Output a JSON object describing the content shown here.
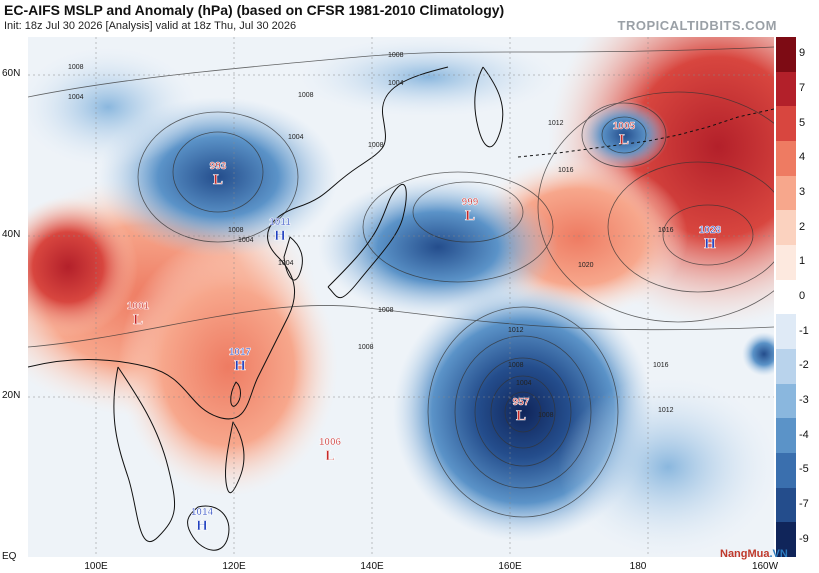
{
  "header": {
    "title": "EC-AIFS MSLP and Anomaly (hPa) (based on CFSR 1981-2010 Climatology)",
    "subtitle": "Init: 18z Jul 30 2026   [Analysis]   valid at 18z Thu, Jul 30 2026",
    "credit": "TROPICALTIDBITS.COM"
  },
  "watermark": {
    "part1": "NangMua",
    "part2": ".VN"
  },
  "axes": {
    "lat_labels": [
      "60N",
      "40N",
      "20N",
      "EQ"
    ],
    "lon_labels": [
      "100E",
      "120E",
      "140E",
      "160E",
      "180",
      "160W"
    ]
  },
  "colorbar": {
    "ticks": [
      "9",
      "7",
      "5",
      "4",
      "3",
      "2",
      "1",
      "0",
      "-1",
      "-2",
      "-3",
      "-4",
      "-5",
      "-7",
      "-9"
    ],
    "colors": [
      "#7d0b14",
      "#b3202a",
      "#d8463f",
      "#ee7b62",
      "#f7a78c",
      "#fbd2bf",
      "#fde9df",
      "#ffffff",
      "#dfeaf6",
      "#b9d3ec",
      "#8ab7de",
      "#5b93c8",
      "#3a6fae",
      "#244d8c",
      "#10255a"
    ]
  },
  "systems": [
    {
      "type": "L",
      "pressure": "993",
      "color": "#c62828"
    },
    {
      "type": "L",
      "pressure": "999",
      "color": "#c62828"
    },
    {
      "type": "L",
      "pressure": "1005",
      "color": "#c62828"
    },
    {
      "type": "H",
      "pressure": "1028",
      "color": "#1f3fbf"
    },
    {
      "type": "H",
      "pressure": "1011",
      "color": "#1f3fbf"
    },
    {
      "type": "L",
      "pressure": "1001",
      "color": "#c62828"
    },
    {
      "type": "H",
      "pressure": "1017",
      "color": "#1f3fbf"
    },
    {
      "type": "L",
      "pressure": "957",
      "color": "#c62828"
    },
    {
      "type": "L",
      "pressure": "1006",
      "color": "#c62828"
    },
    {
      "type": "H",
      "pressure": "1014",
      "color": "#1f3fbf"
    }
  ],
  "isobar_labels": [
    "1004",
    "1008",
    "1004",
    "1008",
    "1012",
    "1016",
    "1008",
    "1004",
    "1008",
    "1004",
    "1016",
    "1020",
    "1012",
    "1008",
    "1016",
    "1012",
    "1004",
    "1008",
    "1008",
    "1004",
    "1008",
    "1008"
  ]
}
